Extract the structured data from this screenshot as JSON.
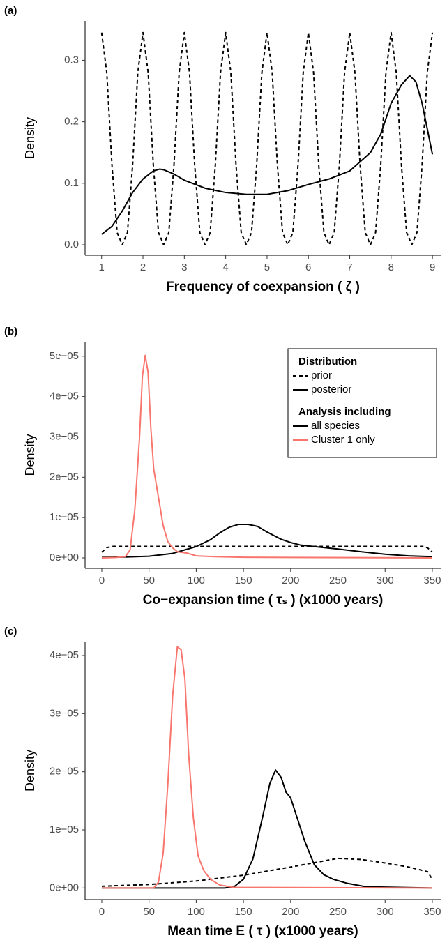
{
  "chart_data": [
    {
      "type": "line",
      "panel_label": "(a)",
      "xlabel": "Frequency of coexpansion ( ζ )",
      "ylabel": "Density",
      "xlim": [
        0.6,
        9.2
      ],
      "ylim": [
        -0.017,
        0.364
      ],
      "xticks": [
        1,
        2,
        3,
        4,
        5,
        6,
        7,
        8,
        9
      ],
      "yticks": [
        {
          "value": 0,
          "label": "0.0"
        },
        0.1,
        0.2,
        0.3
      ],
      "series": [
        {
          "color": "#000000",
          "linestyle": "dashed",
          "x": [
            1,
            1.125,
            1.25,
            1.375,
            1.5,
            1.625,
            1.75,
            1.875,
            2,
            2.125,
            2.25,
            2.375,
            2.5,
            2.625,
            2.75,
            2.875,
            3,
            3.125,
            3.25,
            3.375,
            3.5,
            3.625,
            3.75,
            3.875,
            4,
            4.125,
            4.25,
            4.375,
            4.5,
            4.625,
            4.75,
            4.875,
            5,
            5.125,
            5.25,
            5.375,
            5.5,
            5.625,
            5.75,
            5.875,
            6,
            6.125,
            6.25,
            6.375,
            6.5,
            6.625,
            6.75,
            6.875,
            7,
            7.125,
            7.25,
            7.375,
            7.5,
            7.625,
            7.75,
            7.875,
            8,
            8.125,
            8.25,
            8.375,
            8.5,
            8.625,
            8.75,
            8.875,
            9
          ],
          "values": [
            0.345,
            0.28,
            0.13,
            0.02,
            0,
            0.02,
            0.13,
            0.28,
            0.345,
            0.28,
            0.13,
            0.02,
            0,
            0.02,
            0.13,
            0.28,
            0.345,
            0.28,
            0.13,
            0.02,
            0,
            0.02,
            0.13,
            0.28,
            0.345,
            0.28,
            0.13,
            0.02,
            0,
            0.02,
            0.13,
            0.28,
            0.345,
            0.28,
            0.13,
            0.02,
            0,
            0.02,
            0.13,
            0.28,
            0.345,
            0.28,
            0.13,
            0.02,
            0,
            0.02,
            0.13,
            0.28,
            0.345,
            0.28,
            0.13,
            0.02,
            0,
            0.02,
            0.13,
            0.28,
            0.345,
            0.28,
            0.13,
            0.02,
            0,
            0.02,
            0.13,
            0.28,
            0.345
          ]
        },
        {
          "color": "#000000",
          "linestyle": "solid",
          "x": [
            1,
            1.25,
            1.5,
            1.75,
            2,
            2.25,
            2.4,
            2.5,
            2.75,
            3,
            3.5,
            4,
            4.5,
            5,
            5.5,
            6,
            6.5,
            7,
            7.5,
            7.75,
            8,
            8.25,
            8.45,
            8.6,
            8.75,
            9
          ],
          "values": [
            0.017,
            0.03,
            0.055,
            0.085,
            0.107,
            0.12,
            0.123,
            0.122,
            0.115,
            0.105,
            0.092,
            0.085,
            0.082,
            0.082,
            0.088,
            0.098,
            0.107,
            0.12,
            0.15,
            0.18,
            0.23,
            0.26,
            0.275,
            0.265,
            0.23,
            0.147
          ]
        }
      ]
    },
    {
      "type": "line",
      "panel_label": "(b)",
      "xlabel": "Co−expansion time ( τₛ ) (x1000 years)",
      "ylabel": "Density",
      "xlim": [
        -17.7,
        358.9
      ],
      "ylim": [
        -2.6e-06,
        5.36e-05
      ],
      "xticks": [
        0,
        50,
        100,
        150,
        200,
        250,
        300,
        350
      ],
      "yticks": [
        {
          "value": 0,
          "label": "0e+00"
        },
        {
          "value": 1e-05,
          "label": "1e−05"
        },
        {
          "value": 2e-05,
          "label": "2e−05"
        },
        {
          "value": 3e-05,
          "label": "3e−05"
        },
        {
          "value": 4e-05,
          "label": "4e−05"
        },
        {
          "value": 5e-05,
          "label": "5e−05"
        }
      ],
      "legend_position": "top right",
      "legend": [
        {
          "title": "Distribution",
          "labels": [
            "prior",
            "posterior"
          ],
          "linestyles": [
            "dashed",
            "solid"
          ],
          "colors": [
            "#000000",
            "#000000"
          ]
        },
        {
          "title": "Analysis including",
          "labels": [
            "all species",
            "Cluster 1 only"
          ],
          "linestyles": [
            "solid",
            "solid"
          ],
          "colors": [
            "#000000",
            "#f8766d"
          ]
        }
      ],
      "series": [
        {
          "color": "#000000",
          "linestyle": "dashed",
          "x": [
            0,
            5,
            10,
            340,
            345,
            350
          ],
          "values": [
            1.4e-06,
            2.5e-06,
            2.85e-06,
            2.85e-06,
            2.5e-06,
            1.4e-06
          ]
        },
        {
          "color": "#000000",
          "linestyle": "solid",
          "x": [
            0,
            25,
            50,
            75,
            100,
            115,
            125,
            135,
            145,
            155,
            165,
            175,
            190,
            200,
            210,
            225,
            250,
            275,
            300,
            325,
            350
          ],
          "values": [
            1e-07,
            2e-07,
            4e-07,
            1.1e-06,
            2.8e-06,
            4.5e-06,
            6.2e-06,
            7.6e-06,
            8.3e-06,
            8.3e-06,
            7.8e-06,
            6.4e-06,
            4.6e-06,
            3.8e-06,
            3.2e-06,
            2.8e-06,
            2.2e-06,
            1.5e-06,
            9e-07,
            5e-07,
            3e-07
          ]
        },
        {
          "color": "#f8766d",
          "linestyle": "solid",
          "x": [
            0,
            15,
            25,
            30,
            35,
            40,
            43,
            46,
            49,
            52,
            55,
            60,
            65,
            70,
            75,
            80,
            90,
            100,
            120,
            150,
            200,
            350
          ],
          "values": [
            0,
            1e-07,
            3e-07,
            2e-06,
            1.2e-05,
            3e-05,
            4.5e-05,
            5.02e-05,
            4.6e-05,
            3.2e-05,
            2.2e-05,
            1.5e-05,
            8e-06,
            4e-06,
            2.5e-06,
            1.5e-06,
            1.2e-06,
            5e-07,
            3e-07,
            1.5e-07,
            1e-07,
            0
          ]
        }
      ]
    },
    {
      "type": "line",
      "panel_label": "(c)",
      "xlabel": "Mean time E ( τ ) (x1000 years)",
      "ylabel": "Density",
      "xlim": [
        -17.7,
        358.9
      ],
      "ylim": [
        -2e-06,
        4.24e-05
      ],
      "xticks": [
        0,
        50,
        100,
        150,
        200,
        250,
        300,
        350
      ],
      "yticks": [
        {
          "value": 0,
          "label": "0e+00"
        },
        {
          "value": 1e-05,
          "label": "1e−05"
        },
        {
          "value": 2e-05,
          "label": "2e−05"
        },
        {
          "value": 3e-05,
          "label": "3e−05"
        },
        {
          "value": 4e-05,
          "label": "4e−05"
        }
      ],
      "series": [
        {
          "color": "#000000",
          "linestyle": "dashed",
          "x": [
            0,
            50,
            100,
            150,
            200,
            250,
            275,
            300,
            325,
            345,
            350
          ],
          "values": [
            3e-07,
            6e-07,
            1.2e-06,
            2.2e-06,
            3.6e-06,
            5.1e-06,
            4.9e-06,
            4.3e-06,
            3.6e-06,
            2.8e-06,
            1.5e-06
          ]
        },
        {
          "color": "#000000",
          "linestyle": "solid",
          "x": [
            0,
            130,
            140,
            150,
            160,
            170,
            178,
            184,
            190,
            195,
            200,
            205,
            215,
            225,
            235,
            245,
            260,
            280,
            350
          ],
          "values": [
            0,
            0,
            2e-07,
            1.5e-06,
            5e-06,
            1.2e-05,
            1.8e-05,
            2.03e-05,
            1.9e-05,
            1.65e-05,
            1.55e-05,
            1.3e-05,
            8e-06,
            4e-06,
            2.3e-06,
            1.5e-06,
            8e-07,
            2e-07,
            0
          ]
        },
        {
          "color": "#f8766d",
          "linestyle": "solid",
          "x": [
            0,
            55,
            60,
            65,
            70,
            75,
            80,
            84,
            88,
            92,
            97,
            102,
            108,
            115,
            125,
            140,
            350
          ],
          "values": [
            0,
            0,
            1e-06,
            6e-06,
            1.8e-05,
            3.3e-05,
            4.15e-05,
            4.1e-05,
            3.6e-05,
            2.3e-05,
            1.2e-05,
            5.5e-06,
            3e-06,
            1.5e-06,
            5e-07,
            1e-07,
            0
          ]
        }
      ]
    }
  ]
}
